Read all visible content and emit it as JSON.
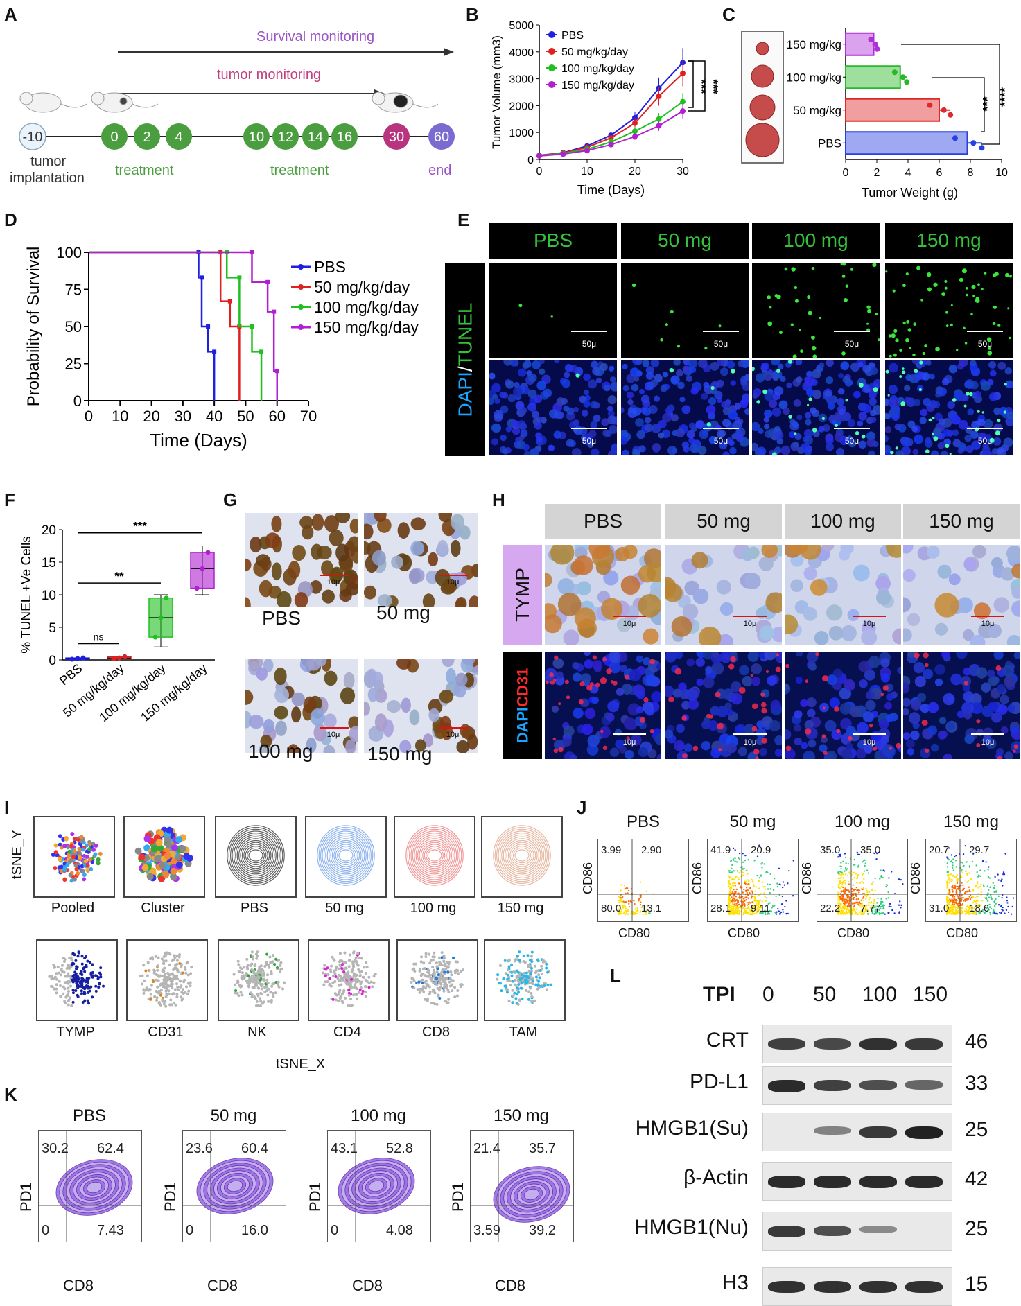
{
  "panels": {
    "A": "A",
    "B": "B",
    "C": "C",
    "D": "D",
    "E": "E",
    "F": "F",
    "G": "G",
    "H": "H",
    "I": "I",
    "J": "J",
    "K": "K",
    "L": "L"
  },
  "panelA": {
    "survival": "Survival monitoring",
    "tumor": "tumor monitoring",
    "nodes": [
      "-10",
      "0",
      "2",
      "4",
      "10",
      "12",
      "14",
      "16",
      "30",
      "60"
    ],
    "tumor_label_1": "tumor",
    "tumor_label_2": "implantation",
    "treatment_1": "treatment",
    "treatment_2": "treatment",
    "end": "end",
    "colors": {
      "node_green": "#4a9e3f",
      "node_pink": "#b8347f",
      "node_purple": "#7a6bd0",
      "arrow": "#333333"
    }
  },
  "chart_data": [
    {
      "panel": "B",
      "type": "line",
      "xlabel": "Time (Days)",
      "ylabel": "Tumor Volume (mm3)",
      "xlim": [
        0,
        30
      ],
      "ylim": [
        0,
        5000
      ],
      "x": [
        0,
        5,
        10,
        15,
        20,
        25,
        30
      ],
      "series": [
        {
          "name": "PBS",
          "color": "#1f1fe0",
          "values": [
            150,
            250,
            500,
            900,
            1550,
            2650,
            3600
          ]
        },
        {
          "name": "50 mg/kg/day",
          "color": "#e02020",
          "values": [
            150,
            240,
            450,
            800,
            1350,
            2350,
            3200
          ]
        },
        {
          "name": "100 mg/kg/day",
          "color": "#20c020",
          "values": [
            140,
            220,
            380,
            650,
            1050,
            1500,
            2150
          ]
        },
        {
          "name": "150 mg/kg/day",
          "color": "#b020d0",
          "values": [
            130,
            200,
            330,
            550,
            850,
            1250,
            1800
          ]
        }
      ],
      "annotations": [
        "***",
        "***"
      ]
    },
    {
      "panel": "C",
      "type": "bar",
      "xlabel": "Tumor Weight (g)",
      "categories": [
        "150 mg/kg",
        "100 mg/kg",
        "50 mg/kg",
        "PBS"
      ],
      "values": [
        1.8,
        3.5,
        6.0,
        7.8
      ],
      "colors": [
        "#b030d8",
        "#28b828",
        "#e02828",
        "#2840e0"
      ],
      "xlim": [
        0,
        10
      ],
      "annotations": [
        "***",
        "****"
      ]
    },
    {
      "panel": "D",
      "type": "line",
      "xlabel": "Time (Days)",
      "ylabel": "Probability of Survival",
      "xlim": [
        0,
        70
      ],
      "ylim": [
        0,
        100
      ],
      "series": [
        {
          "name": "PBS",
          "color": "#1f1fe0",
          "x": [
            0,
            35,
            35,
            36,
            36,
            38,
            38,
            40,
            40
          ],
          "values": [
            100,
            100,
            83,
            83,
            50,
            50,
            33,
            33,
            0
          ]
        },
        {
          "name": "50 mg/kg/day",
          "color": "#e02020",
          "x": [
            0,
            42,
            42,
            45,
            45,
            48,
            48
          ],
          "values": [
            100,
            100,
            67,
            67,
            50,
            50,
            0
          ]
        },
        {
          "name": "100 mg/kg/day",
          "color": "#20c020",
          "x": [
            0,
            44,
            44,
            48,
            48,
            52,
            52,
            55,
            55
          ],
          "values": [
            100,
            100,
            83,
            83,
            50,
            50,
            33,
            33,
            0
          ]
        },
        {
          "name": "150 mg/kg/day",
          "color": "#b020d0",
          "x": [
            0,
            52,
            52,
            57,
            57,
            59,
            59,
            60,
            60
          ],
          "values": [
            100,
            100,
            80,
            80,
            60,
            60,
            20,
            20,
            0
          ]
        }
      ]
    },
    {
      "panel": "F",
      "type": "box",
      "ylabel": "% TUNEL +Ve Cells",
      "categories": [
        "PBS",
        "50 mg/kg/day",
        "100 mg/kg/day",
        "150 mg/kg/day"
      ],
      "colors": [
        "#1f1fe0",
        "#e02020",
        "#20c020",
        "#b020d0"
      ],
      "ylim": [
        0,
        20
      ],
      "boxes": [
        {
          "min": 0.1,
          "q1": 0.1,
          "median": 0.2,
          "q3": 0.3,
          "max": 0.3
        },
        {
          "min": 0.2,
          "q1": 0.2,
          "median": 0.3,
          "q3": 0.5,
          "max": 0.5
        },
        {
          "min": 2,
          "q1": 3.5,
          "median": 6.5,
          "q3": 9.5,
          "max": 10
        },
        {
          "min": 10,
          "q1": 11,
          "median": 14,
          "q3": 16.5,
          "max": 17.5
        }
      ],
      "annotations": [
        "***",
        "**",
        "ns"
      ]
    }
  ],
  "panelE": {
    "headers": [
      "PBS",
      "50 mg",
      "100 mg",
      "150 mg"
    ],
    "ylabel_dapi": "DAPI",
    "ylabel_slash": "/",
    "ylabel_tunel": "TUNEL",
    "scale": "50μ"
  },
  "panelG": {
    "labels": [
      "PBS",
      "50 mg",
      "100 mg",
      "150 mg"
    ],
    "scale": "10μ"
  },
  "panelH": {
    "headers": [
      "PBS",
      "50 mg",
      "100 mg",
      "150 mg"
    ],
    "row1": "TYMP",
    "row2_dapi": "DAPI",
    "row2_cd31": "CD31",
    "scale": "10μ"
  },
  "panelI": {
    "top_labels": [
      "Pooled",
      "Cluster",
      "PBS",
      "50 mg",
      "100 mg",
      "150 mg"
    ],
    "bottom_labels": [
      "TYMP",
      "CD31",
      "NK",
      "CD4",
      "CD8",
      "TAM"
    ],
    "ylabel": "tSNE_Y",
    "xlabel": "tSNE_X"
  },
  "panelJ": {
    "titles": [
      "PBS",
      "50 mg",
      "100 mg",
      "150 mg"
    ],
    "xlabel": "CD80",
    "ylabel": "CD86",
    "quadrants": [
      {
        "ul": "3.99",
        "ur": "2.90",
        "ll": "80.0",
        "lr": "13.1"
      },
      {
        "ul": "41.9",
        "ur": "20.9",
        "ll": "28.1",
        "lr": "9.11"
      },
      {
        "ul": "35.0",
        "ur": "35.0",
        "ll": "22.2",
        "lr": "7.77"
      },
      {
        "ul": "20.7",
        "ur": "29.7",
        "ll": "31.0",
        "lr": "18.6"
      }
    ]
  },
  "panelK": {
    "titles": [
      "PBS",
      "50 mg",
      "100 mg",
      "150 mg"
    ],
    "xlabel": "CD8",
    "ylabel": "PD1",
    "quadrants": [
      {
        "ul": "30.2",
        "ur": "62.4",
        "ll": "0",
        "lr": "7.43"
      },
      {
        "ul": "23.6",
        "ur": "60.4",
        "ll": "0",
        "lr": "16.0"
      },
      {
        "ul": "43.1",
        "ur": "52.8",
        "ll": "0",
        "lr": "4.08"
      },
      {
        "ul": "21.4",
        "ur": "35.7",
        "ll": "3.59",
        "lr": "39.2"
      }
    ]
  },
  "panelL": {
    "tpi": "TPI",
    "doses": [
      "0",
      "50",
      "100",
      "150"
    ],
    "rows": [
      {
        "name": "CRT",
        "kda": "46",
        "intensity": [
          0.8,
          0.75,
          0.9,
          0.85
        ]
      },
      {
        "name": "PD-L1",
        "kda": "33",
        "intensity": [
          0.95,
          0.8,
          0.7,
          0.55
        ]
      },
      {
        "name": "HMGB1(Su)",
        "kda": "25",
        "intensity": [
          0.0,
          0.35,
          0.85,
          1.0
        ]
      },
      {
        "name": "β-Actin",
        "kda": "42",
        "intensity": [
          0.95,
          0.95,
          0.95,
          0.95
        ]
      },
      {
        "name": "HMGB1(Nu)",
        "kda": "25",
        "intensity": [
          0.85,
          0.7,
          0.3,
          0.0
        ]
      },
      {
        "name": "H3",
        "kda": "15",
        "intensity": [
          0.9,
          0.9,
          0.9,
          0.9
        ]
      }
    ]
  }
}
